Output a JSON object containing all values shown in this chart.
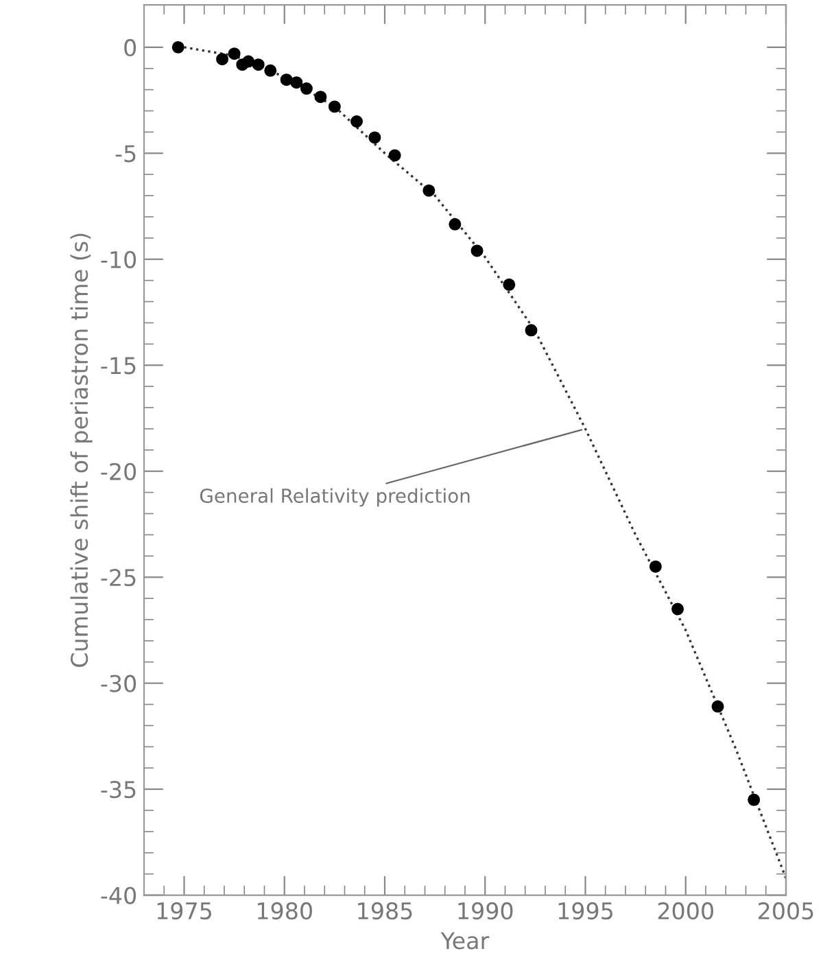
{
  "chart_data": {
    "type": "scatter",
    "xlabel": "Year",
    "ylabel": "Cumulative shift of periastron time (s)",
    "xlim": [
      1973,
      2005
    ],
    "xticks": [
      {
        "value": 1973,
        "label": null
      },
      {
        "value": 1974,
        "label": null
      },
      1975,
      {
        "value": 1976,
        "label": null
      },
      {
        "value": 1977,
        "label": null
      },
      {
        "value": 1978,
        "label": null
      },
      {
        "value": 1979,
        "label": null
      },
      1980,
      {
        "value": 1981,
        "label": null
      },
      {
        "value": 1982,
        "label": null
      },
      {
        "value": 1983,
        "label": null
      },
      {
        "value": 1984,
        "label": null
      },
      1985,
      {
        "value": 1986,
        "label": null
      },
      {
        "value": 1987,
        "label": null
      },
      {
        "value": 1988,
        "label": null
      },
      {
        "value": 1989,
        "label": null
      },
      1990,
      {
        "value": 1991,
        "label": null
      },
      {
        "value": 1992,
        "label": null
      },
      {
        "value": 1993,
        "label": null
      },
      {
        "value": 1994,
        "label": null
      },
      1995,
      {
        "value": 1996,
        "label": null
      },
      {
        "value": 1997,
        "label": null
      },
      {
        "value": 1998,
        "label": null
      },
      {
        "value": 1999,
        "label": null
      },
      2000,
      {
        "value": 2001,
        "label": null
      },
      {
        "value": 2002,
        "label": null
      },
      {
        "value": 2003,
        "label": null
      },
      {
        "value": 2004,
        "label": null
      },
      2005
    ],
    "ylim": [
      -40,
      2
    ],
    "yticks": [
      0,
      {
        "value": -1,
        "label": null
      },
      {
        "value": -2,
        "label": null
      },
      {
        "value": -3,
        "label": null
      },
      {
        "value": -4,
        "label": null
      },
      -5,
      {
        "value": -6,
        "label": null
      },
      {
        "value": -7,
        "label": null
      },
      {
        "value": -8,
        "label": null
      },
      {
        "value": -9,
        "label": null
      },
      -10,
      {
        "value": -11,
        "label": null
      },
      {
        "value": -12,
        "label": null
      },
      {
        "value": -13,
        "label": null
      },
      {
        "value": -14,
        "label": null
      },
      -15,
      {
        "value": -16,
        "label": null
      },
      {
        "value": -17,
        "label": null
      },
      {
        "value": -18,
        "label": null
      },
      {
        "value": -19,
        "label": null
      },
      -20,
      {
        "value": -21,
        "label": null
      },
      {
        "value": -22,
        "label": null
      },
      {
        "value": -23,
        "label": null
      },
      {
        "value": -24,
        "label": null
      },
      -25,
      {
        "value": -26,
        "label": null
      },
      {
        "value": -27,
        "label": null
      },
      {
        "value": -28,
        "label": null
      },
      {
        "value": -29,
        "label": null
      },
      -30,
      {
        "value": -31,
        "label": null
      },
      {
        "value": -32,
        "label": null
      },
      {
        "value": -33,
        "label": null
      },
      {
        "value": -34,
        "label": null
      },
      -35,
      {
        "value": -36,
        "label": null
      },
      {
        "value": -37,
        "label": null
      },
      {
        "value": -38,
        "label": null
      },
      {
        "value": -39,
        "label": null
      },
      -40
    ],
    "grid": false,
    "legend": false,
    "marker": "circle",
    "series": [
      {
        "type": "scatter",
        "color": "#000000",
        "x": [
          1974.7,
          1976.9,
          1977.5,
          1977.9,
          1978.2,
          1978.7,
          1979.3,
          1980.1,
          1980.6,
          1981.1,
          1981.8,
          1982.5,
          1983.6,
          1984.5,
          1985.5,
          1987.2,
          1988.5,
          1989.6,
          1991.2,
          1992.3,
          1998.5,
          1999.6,
          2001.6,
          2003.4
        ],
        "values": [
          0.0,
          -0.56,
          -0.3,
          -0.82,
          -0.67,
          -0.82,
          -1.1,
          -1.53,
          -1.66,
          -1.95,
          -2.34,
          -2.8,
          -3.5,
          -4.26,
          -5.1,
          -6.76,
          -8.35,
          -9.6,
          -11.2,
          -13.35,
          -24.5,
          -26.5,
          -31.1,
          -35.5
        ]
      },
      {
        "type": "line",
        "color": "#333333",
        "line_style": "dotted",
        "marker": "none",
        "x": [
          1975,
          1977.5,
          1980,
          1982.5,
          1985,
          1987.5,
          1990,
          1992.5,
          1995,
          1997.5,
          2000,
          2002.5,
          2005
        ],
        "values": [
          0,
          -0.4,
          -1.4,
          -2.8,
          -5.0,
          -7.0,
          -9.9,
          -13.4,
          -18.0,
          -23.0,
          -27.5,
          -33.1,
          -39.2
        ]
      }
    ],
    "annotations": [
      {
        "text": "General Relativity prediction",
        "x": 1995,
        "y": -18.0
      }
    ]
  }
}
